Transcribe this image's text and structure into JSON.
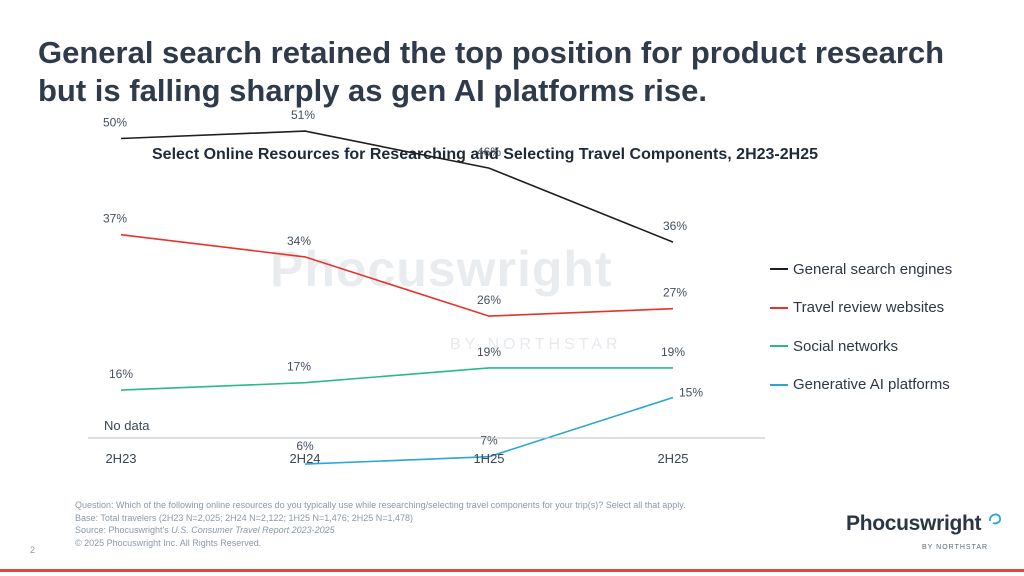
{
  "headline": "General search retained the top position for product research but is falling sharply as gen AI platforms rise.",
  "watermark": {
    "text": "Phocuswright",
    "sub": "BY NORTHSTAR"
  },
  "chart_data": {
    "type": "line",
    "title": "Select Online Resources for Researching and Selecting Travel Components, 2H23-2H25",
    "categories": [
      "2H23",
      "2H24",
      "1H25",
      "2H25"
    ],
    "ylim": [
      0,
      60
    ],
    "grid": false,
    "legend_position": "right",
    "series": [
      {
        "name": "General search engines",
        "color": "#1f1f1f",
        "values": [
          50,
          51,
          46,
          36
        ],
        "labels": [
          "50%",
          "51%",
          "46%",
          "36%"
        ]
      },
      {
        "name": "Travel review websites",
        "color": "#e5332a",
        "values": [
          37,
          34,
          26,
          27
        ],
        "labels": [
          "37%",
          "34%",
          "26%",
          "27%"
        ]
      },
      {
        "name": "Social networks",
        "color": "#2bb98c",
        "values": [
          16,
          17,
          19,
          19
        ],
        "labels": [
          "16%",
          "17%",
          "19%",
          "19%"
        ]
      },
      {
        "name": "Generative AI platforms",
        "color": "#2aa6d6",
        "values": [
          null,
          6,
          7,
          15
        ],
        "labels": [
          "",
          "6%",
          "7%",
          "15%"
        ]
      }
    ],
    "annotations": [
      "No data"
    ]
  },
  "footnotes": {
    "question": "Question: Which of the following online resources do you typically use while researching/selecting travel components for your trip(s)? Select all that apply.",
    "base": "Base: Total travelers (2H23 N=2,025; 2H24 N=2,122; 1H25 N=1,476; 2H25 N=1,478)",
    "source_prefix": "Source: Phocuswright's ",
    "source_title": "U.S. Consumer Travel Report 2023-2025",
    "copyright": "© 2025 Phocuswright Inc. All Rights Reserved."
  },
  "page_number": "2",
  "logo": {
    "name": "Phocuswright",
    "sub": "BY NORTHSTAR"
  }
}
